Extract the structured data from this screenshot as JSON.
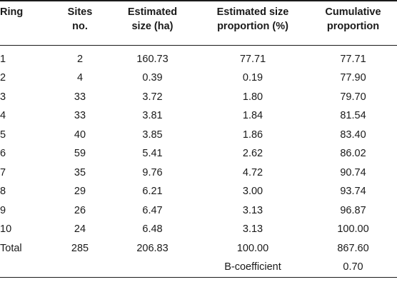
{
  "table": {
    "headers": [
      "Ring",
      "Sites\nno.",
      "Estimated\nsize (ha)",
      "Estimated size\nproportion (%)",
      "Cumulative\nproportion"
    ],
    "rows": [
      [
        "1",
        "2",
        "160.73",
        "77.71",
        "77.71"
      ],
      [
        "2",
        "4",
        "0.39",
        "0.19",
        "77.90"
      ],
      [
        "3",
        "33",
        "3.72",
        "1.80",
        "79.70"
      ],
      [
        "4",
        "33",
        "3.81",
        "1.84",
        "81.54"
      ],
      [
        "5",
        "40",
        "3.85",
        "1.86",
        "83.40"
      ],
      [
        "6",
        "59",
        "5.41",
        "2.62",
        "86.02"
      ],
      [
        "7",
        "35",
        "9.76",
        "4.72",
        "90.74"
      ],
      [
        "8",
        "29",
        "6.21",
        "3.00",
        "93.74"
      ],
      [
        "9",
        "26",
        "6.47",
        "3.13",
        "96.87"
      ],
      [
        "10",
        "24",
        "6.48",
        "3.13",
        "100.00"
      ],
      [
        "Total",
        "285",
        "206.83",
        "100.00",
        "867.60"
      ],
      [
        "",
        "",
        "",
        "B-coefficient",
        "0.70"
      ]
    ]
  }
}
